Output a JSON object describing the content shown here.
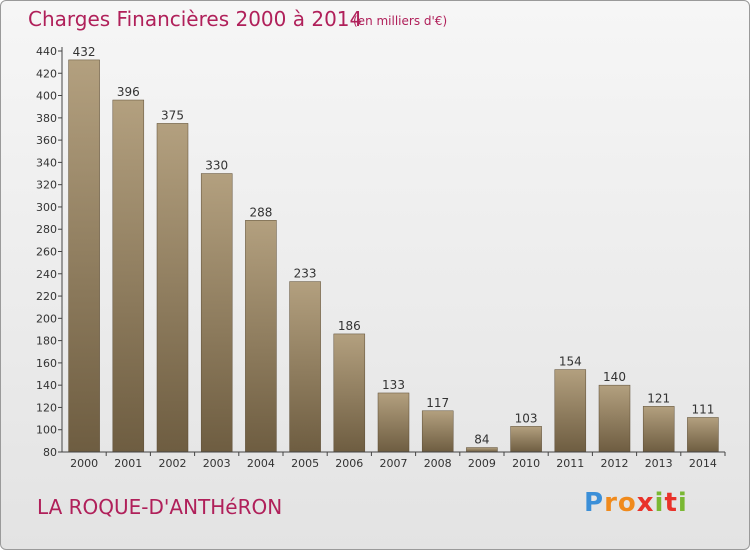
{
  "header": {
    "title": "Charges Financières 2000 à 2014",
    "unit": "(en milliers d'€)"
  },
  "footer": {
    "commune": "LA ROQUE-D'ANTHéRON",
    "logo_text": "Proxiti"
  },
  "colors": {
    "accent": "#b0205a",
    "bar_top": "#b3a07f",
    "bar_bottom": "#6e5d41",
    "logo_colors": [
      "#3b8fd8",
      "#f08a1c",
      "#e9322a",
      "#7ab833"
    ]
  },
  "chart_data": {
    "type": "bar",
    "title": "Charges Financières 2000 à 2014",
    "subtitle": "(en milliers d'€)",
    "categories": [
      "2000",
      "2001",
      "2002",
      "2003",
      "2004",
      "2005",
      "2006",
      "2007",
      "2008",
      "2009",
      "2010",
      "2011",
      "2012",
      "2013",
      "2014"
    ],
    "values": [
      432,
      396,
      375,
      330,
      288,
      233,
      186,
      133,
      117,
      84,
      103,
      154,
      140,
      121,
      111
    ],
    "ylim": [
      80,
      440
    ],
    "yticks": [
      80,
      100,
      120,
      140,
      160,
      180,
      200,
      220,
      240,
      260,
      280,
      300,
      320,
      340,
      360,
      380,
      400,
      420,
      440
    ],
    "grid": false,
    "data_labels": true
  }
}
